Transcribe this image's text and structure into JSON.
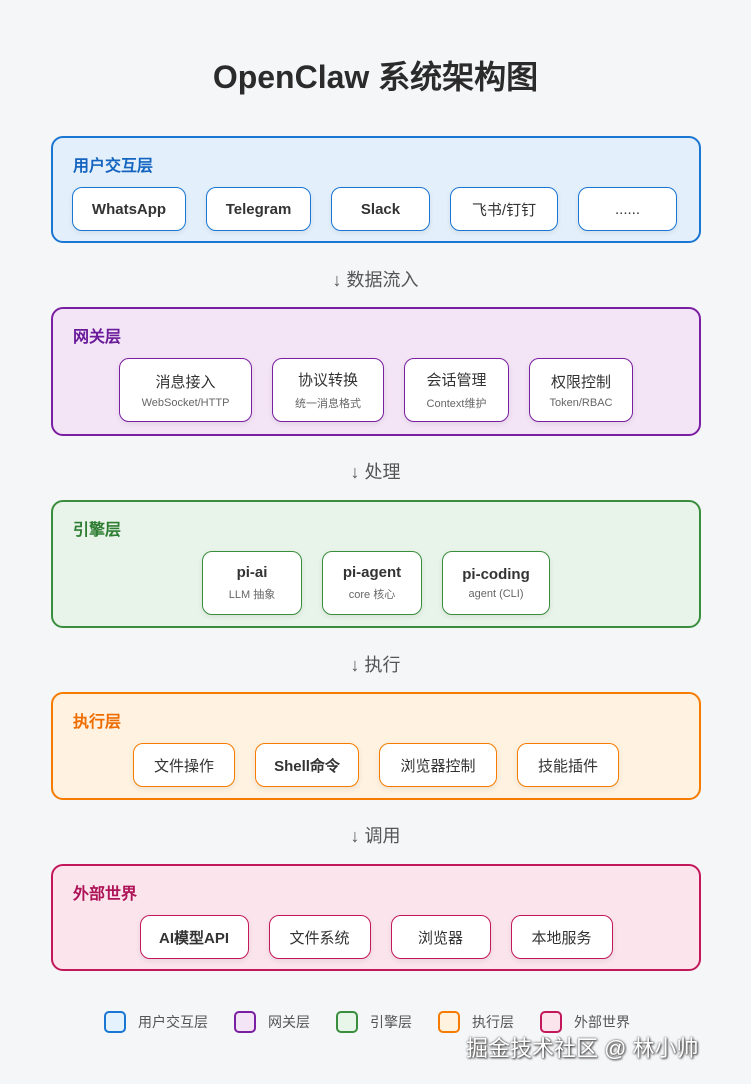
{
  "title": "OpenClaw 系统架构图",
  "colors": {
    "user": "#1976d2",
    "gateway": "#7b1fa2",
    "engine": "#388e3c",
    "exec": "#f57c00",
    "external": "#c2185b"
  },
  "layers": [
    {
      "title": "用户交互层",
      "items": [
        {
          "name": "WhatsApp"
        },
        {
          "name": "Telegram"
        },
        {
          "name": "Slack"
        },
        {
          "name": "飞书/钉钉"
        },
        {
          "name": "......"
        }
      ]
    },
    {
      "title": "网关层",
      "items": [
        {
          "name": "消息接入",
          "sub": "WebSocket/HTTP"
        },
        {
          "name": "协议转换",
          "sub": "统一消息格式"
        },
        {
          "name": "会话管理",
          "sub": "Context维护"
        },
        {
          "name": "权限控制",
          "sub": "Token/RBAC"
        }
      ]
    },
    {
      "title": "引擎层",
      "items": [
        {
          "name": "pi-ai",
          "sub": "LLM 抽象"
        },
        {
          "name": "pi-agent",
          "sub": "core 核心"
        },
        {
          "name": "pi-coding",
          "sub": "agent (CLI)"
        }
      ]
    },
    {
      "title": "执行层",
      "items": [
        {
          "name": "文件操作"
        },
        {
          "name": "Shell命令"
        },
        {
          "name": "浏览器控制"
        },
        {
          "name": "技能插件"
        }
      ]
    },
    {
      "title": "外部世界",
      "items": [
        {
          "name": "AI模型API"
        },
        {
          "name": "文件系统"
        },
        {
          "name": "浏览器"
        },
        {
          "name": "本地服务"
        }
      ]
    }
  ],
  "arrows": [
    "↓ 数据流入",
    "↓ 处理",
    "↓ 执行",
    "↓ 调用"
  ],
  "legend": [
    "用户交互层",
    "网关层",
    "引擎层",
    "执行层",
    "外部世界"
  ],
  "watermark": "掘金技术社区 @ 林小帅"
}
